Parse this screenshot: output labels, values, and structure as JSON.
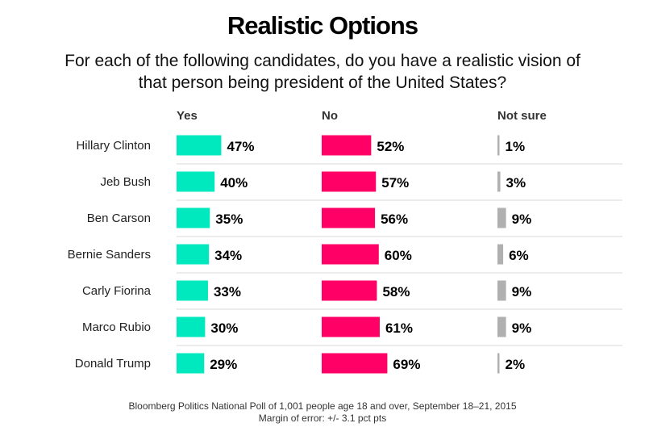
{
  "title": "Realistic Options",
  "subtitle": "For each of the following candidates, do you have a realistic vision of that person being president of the United States?",
  "footnote_line1": "Bloomberg Politics National Poll of 1,001 people age 18 and over, September 18–21, 2015",
  "footnote_line2": "Margin of error: +/- 3.1 pct pts",
  "colors": {
    "yes": "#00e8be",
    "no": "#ff0066",
    "not_sure": "#b0b0b0",
    "gridline": "#d9d9d9"
  },
  "chart_data": {
    "type": "bar",
    "categories": [
      "Hillary Clinton",
      "Jeb Bush",
      "Ben Carson",
      "Bernie Sanders",
      "Carly Fiorina",
      "Marco Rubio",
      "Donald Trump"
    ],
    "series": [
      {
        "name": "Yes",
        "values": [
          47,
          40,
          35,
          34,
          33,
          30,
          29
        ]
      },
      {
        "name": "No",
        "values": [
          52,
          57,
          56,
          60,
          58,
          61,
          69
        ]
      },
      {
        "name": "Not sure",
        "values": [
          1,
          3,
          9,
          6,
          9,
          9,
          2
        ]
      }
    ],
    "value_suffix": "%"
  }
}
